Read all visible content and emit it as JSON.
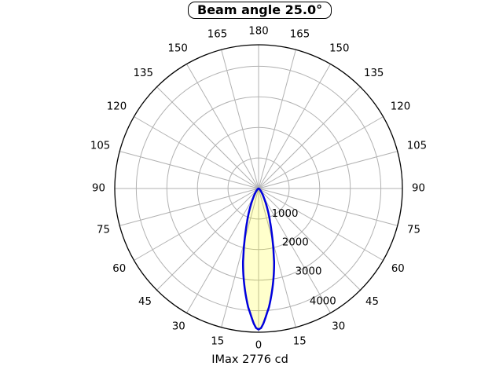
{
  "title": "Beam angle 25.0°",
  "footer": "IMax 2776 cd",
  "chart_data": {
    "type": "polar",
    "subtype": "photometric-intensity-distribution",
    "title": "Beam angle 25.0°",
    "beam_angle_deg": 25.0,
    "imax_cd": 2776,
    "imax_label": "IMax 2776 cd",
    "angle_tick_labels_deg": [
      0,
      15,
      30,
      45,
      60,
      75,
      90,
      105,
      120,
      135,
      150,
      165,
      180
    ],
    "angle_ticks_mirrored_both_sides": true,
    "angle_zero_position": "bottom",
    "radial_tick_labels_cd": [
      1000,
      2000,
      3000,
      4000
    ],
    "radial_axis_max_cd": 4704,
    "grid": "on",
    "grid_color": "#b2b2b2",
    "outline_color": "#000000",
    "beam_stroke_color": "#0000dd",
    "beam_fill_color": "#ffffcc",
    "beam_profile_relative_intensity": [
      [
        0,
        1.0
      ],
      [
        1,
        0.99
      ],
      [
        2,
        0.96
      ],
      [
        3,
        0.92
      ],
      [
        4,
        0.88
      ],
      [
        5,
        0.845
      ],
      [
        6,
        0.8
      ],
      [
        7,
        0.755
      ],
      [
        8,
        0.71
      ],
      [
        9,
        0.665
      ],
      [
        10,
        0.62
      ],
      [
        11,
        0.575
      ],
      [
        12,
        0.53
      ],
      [
        12.5,
        0.5
      ],
      [
        13,
        0.475
      ],
      [
        14,
        0.43
      ],
      [
        15,
        0.385
      ],
      [
        16,
        0.345
      ],
      [
        17,
        0.31
      ],
      [
        18,
        0.28
      ],
      [
        19,
        0.25
      ],
      [
        20,
        0.228
      ],
      [
        21,
        0.205
      ],
      [
        22,
        0.185
      ],
      [
        23,
        0.165
      ],
      [
        24,
        0.148
      ],
      [
        25,
        0.132
      ],
      [
        26,
        0.118
      ],
      [
        27,
        0.105
      ],
      [
        28,
        0.094
      ],
      [
        29,
        0.084
      ],
      [
        30,
        0.075
      ],
      [
        32,
        0.061
      ],
      [
        34,
        0.05
      ],
      [
        36,
        0.041
      ],
      [
        38,
        0.034
      ],
      [
        40,
        0.028
      ],
      [
        43,
        0.021
      ],
      [
        46,
        0.016
      ],
      [
        50,
        0.011
      ],
      [
        55,
        0.0075
      ],
      [
        60,
        0.005
      ],
      [
        70,
        0.0028
      ],
      [
        80,
        0.0018
      ],
      [
        90,
        0.0012
      ],
      [
        110,
        0.0008
      ],
      [
        130,
        0.0006
      ],
      [
        150,
        0.0005
      ],
      [
        180,
        0.0005
      ]
    ]
  }
}
